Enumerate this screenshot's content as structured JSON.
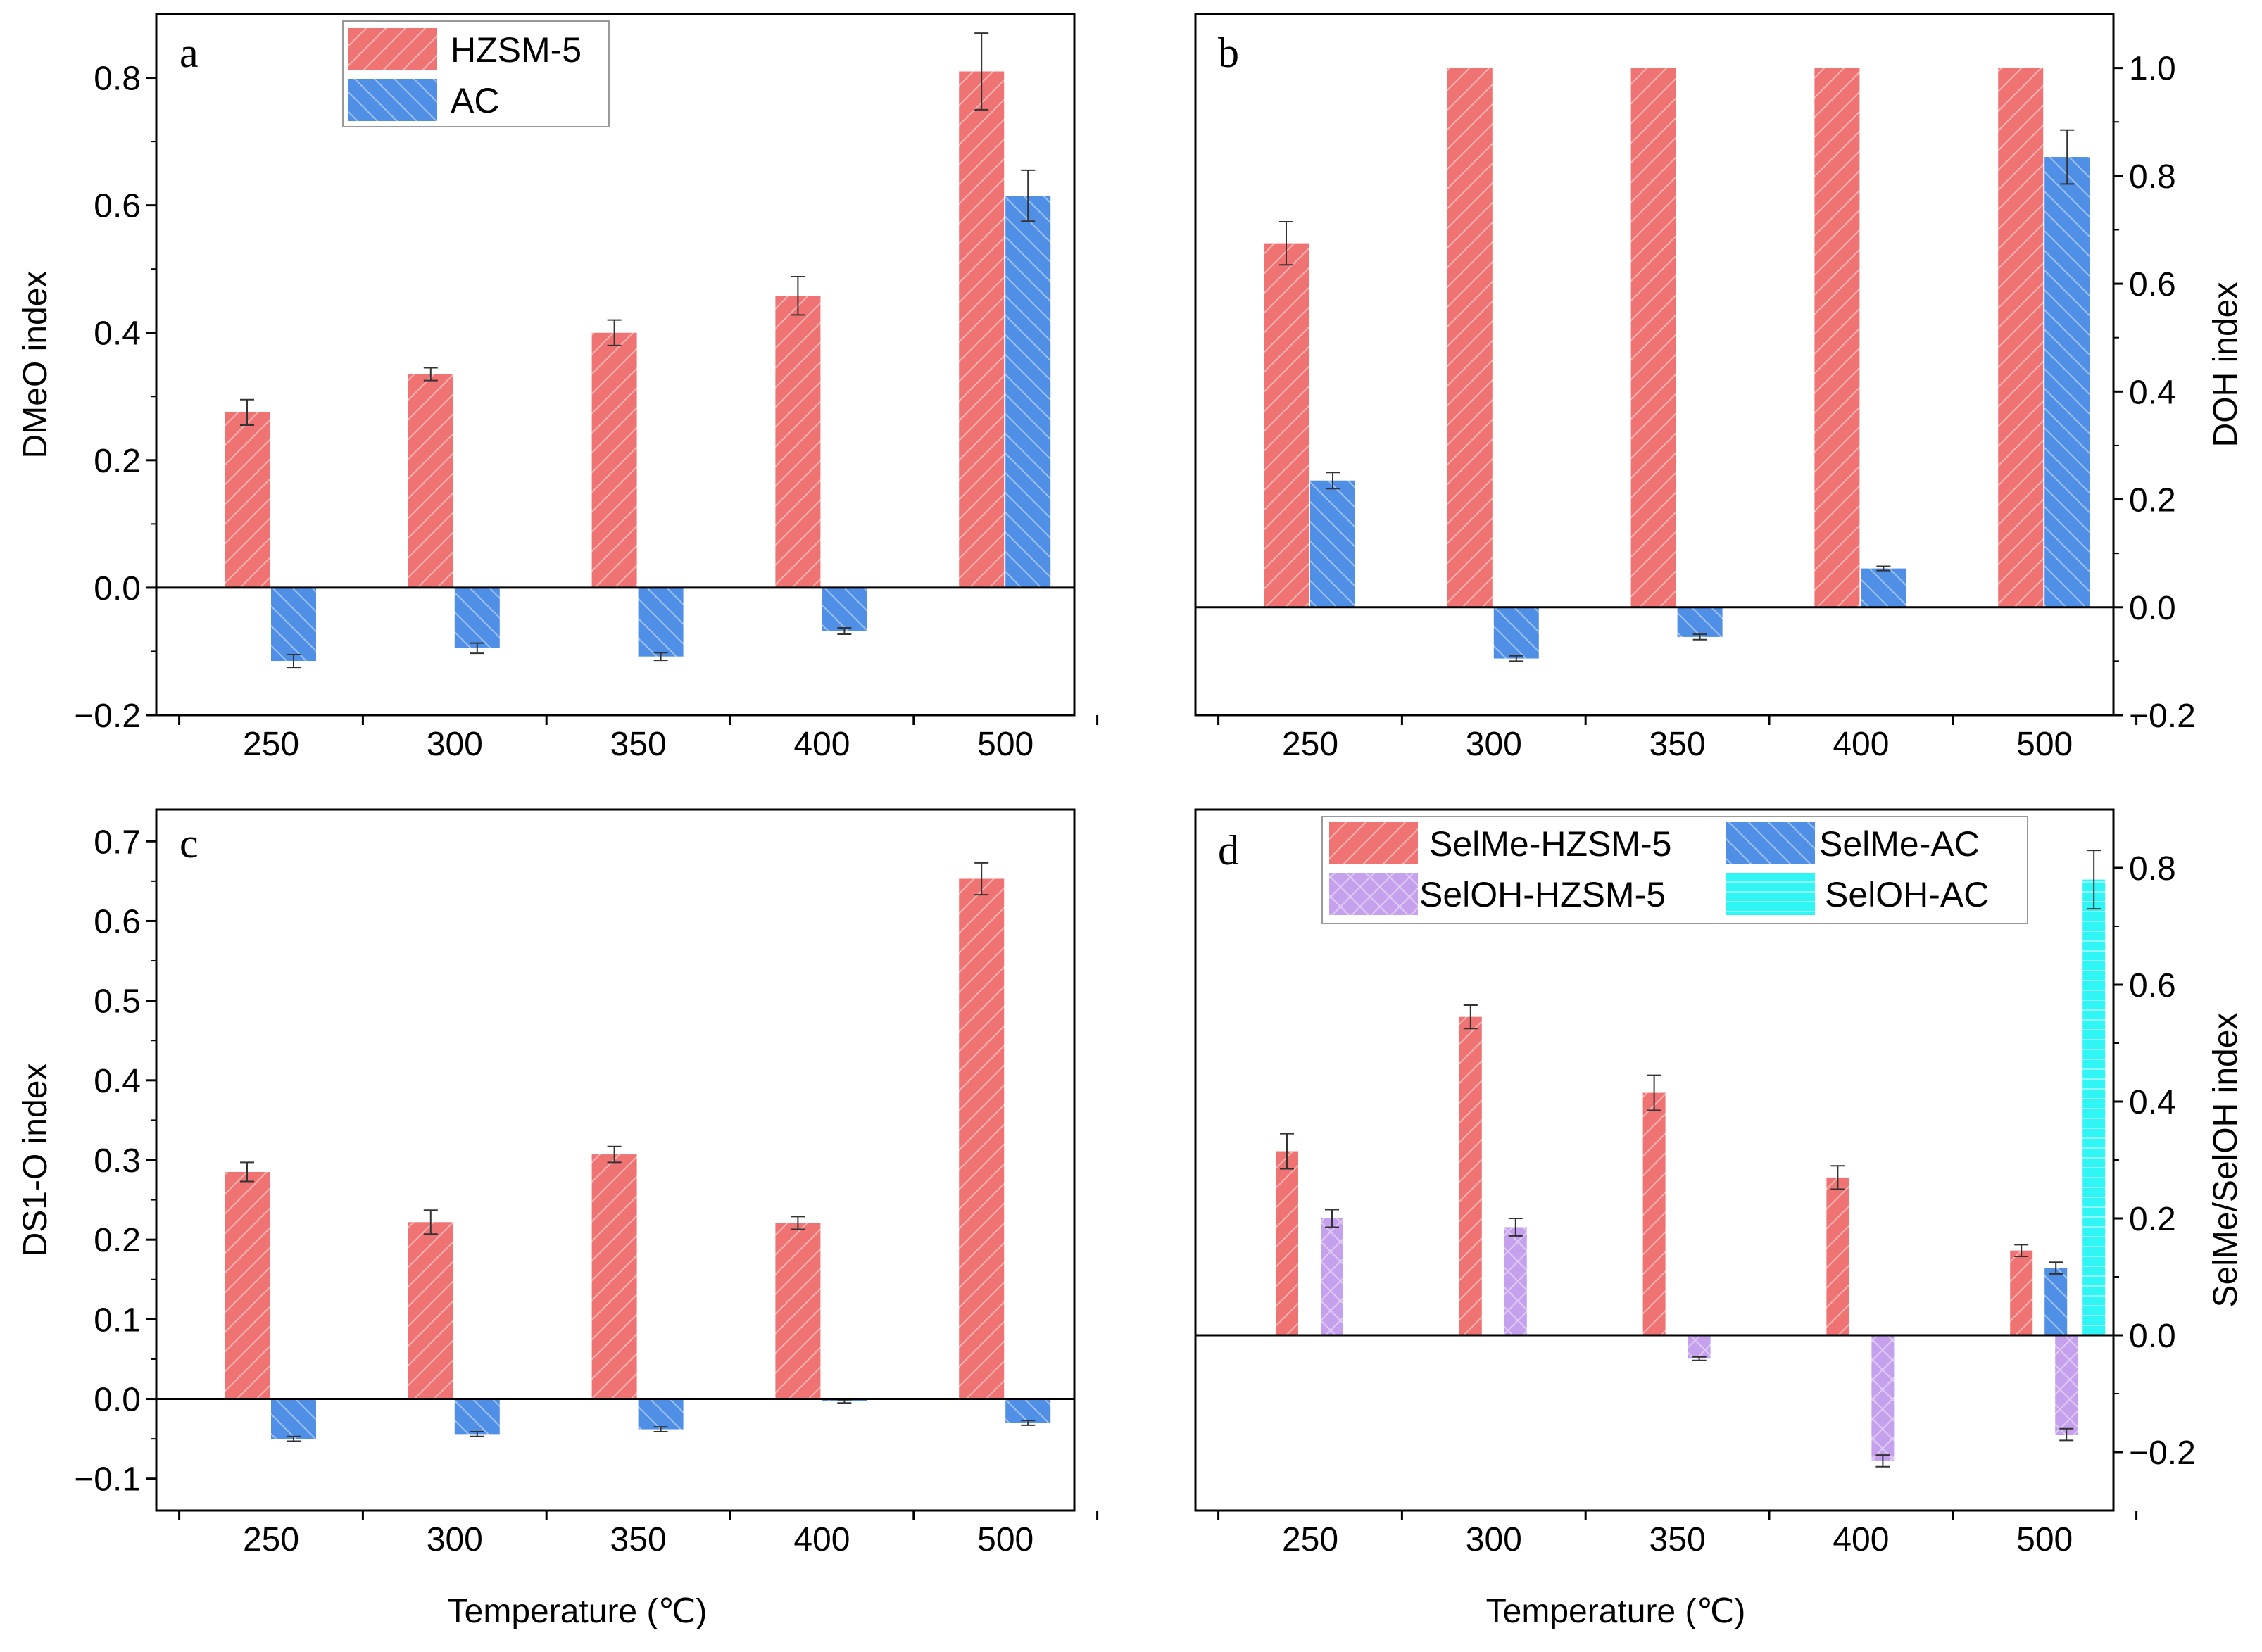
{
  "colors": {
    "hzsm": "#f07373",
    "ac": "#4f8fe6",
    "seloh_hzsm": "#c5a0ec",
    "seloh_ac": "#2ff6f4",
    "errorbar": "#333333",
    "axis": "#000000"
  },
  "xlabel": "Temperature (℃)",
  "categories": [
    "250",
    "300",
    "350",
    "400",
    "500"
  ],
  "chart_data": [
    {
      "type": "bar",
      "panel": "a",
      "ylabel": "DMeO index",
      "y_axis_side": "left",
      "ylim": [
        -0.2,
        0.9
      ],
      "yticks": [
        -0.2,
        0.0,
        0.2,
        0.4,
        0.6,
        0.8
      ],
      "ytick_labels": [
        "−0.2",
        "0.0",
        "0.2",
        "0.4",
        "0.6",
        "0.8"
      ],
      "xlabel": "",
      "categories": [
        "250",
        "300",
        "350",
        "400",
        "500"
      ],
      "legend": "top-left",
      "series": [
        {
          "name": "HZSM-5",
          "color_key": "hzsm",
          "pattern": "hatch-fwd",
          "values": [
            0.275,
            0.335,
            0.4,
            0.458,
            0.81
          ],
          "errors": [
            0.02,
            0.01,
            0.02,
            0.03,
            0.06
          ]
        },
        {
          "name": "AC",
          "color_key": "ac",
          "pattern": "hatch-bwd",
          "values": [
            -0.115,
            -0.095,
            -0.108,
            -0.068,
            0.615
          ],
          "errors": [
            0.01,
            0.008,
            0.006,
            0.005,
            0.04
          ]
        }
      ]
    },
    {
      "type": "bar",
      "panel": "b",
      "ylabel": "DOH index",
      "y_axis_side": "right",
      "ylim": [
        -0.2,
        1.1
      ],
      "yticks": [
        -0.2,
        0.0,
        0.2,
        0.4,
        0.6,
        0.8,
        1.0
      ],
      "ytick_labels": [
        "−0.2",
        "0.0",
        "0.2",
        "0.4",
        "0.6",
        "0.8",
        "1.0"
      ],
      "xlabel": "",
      "categories": [
        "250",
        "300",
        "350",
        "400",
        "500"
      ],
      "legend": "none",
      "series": [
        {
          "name": "",
          "color_key": "hzsm",
          "pattern": "hatch-fwd",
          "values": [
            0.675,
            1.0,
            1.0,
            1.0,
            1.0
          ],
          "errors": [
            0.04,
            0,
            0,
            0,
            0
          ]
        },
        {
          "name": "",
          "color_key": "ac",
          "pattern": "hatch-bwd",
          "values": [
            0.235,
            -0.095,
            -0.055,
            0.072,
            0.835
          ],
          "errors": [
            0.015,
            0.005,
            0.005,
            0.004,
            0.05
          ]
        }
      ]
    },
    {
      "type": "bar",
      "panel": "c",
      "ylabel": "DS1-O index",
      "y_axis_side": "left",
      "ylim": [
        -0.14,
        0.74
      ],
      "yticks": [
        -0.1,
        0.0,
        0.1,
        0.2,
        0.3,
        0.4,
        0.5,
        0.6,
        0.7
      ],
      "ytick_labels": [
        "−0.1",
        "0.0",
        "0.1",
        "0.2",
        "0.3",
        "0.4",
        "0.5",
        "0.6",
        "0.7"
      ],
      "xlabel": "Temperature (℃)",
      "categories": [
        "250",
        "300",
        "350",
        "400",
        "500"
      ],
      "legend": "none",
      "series": [
        {
          "name": "",
          "color_key": "hzsm",
          "pattern": "hatch-fwd",
          "values": [
            0.285,
            0.222,
            0.307,
            0.221,
            0.653
          ],
          "errors": [
            0.012,
            0.015,
            0.01,
            0.008,
            0.02
          ]
        },
        {
          "name": "",
          "color_key": "ac",
          "pattern": "hatch-bwd",
          "values": [
            -0.05,
            -0.044,
            -0.038,
            -0.003,
            -0.03
          ],
          "errors": [
            0.003,
            0.003,
            0.003,
            0.002,
            0.003
          ]
        }
      ]
    },
    {
      "type": "bar",
      "panel": "d",
      "ylabel": "SelMe/SelOH index",
      "y_axis_side": "right",
      "ylim": [
        -0.3,
        0.9
      ],
      "yticks": [
        -0.2,
        0.0,
        0.2,
        0.4,
        0.6,
        0.8
      ],
      "ytick_labels": [
        "−0.2",
        "0.0",
        "0.2",
        "0.4",
        "0.6",
        "0.8"
      ],
      "xlabel": "Temperature (℃)",
      "categories": [
        "250",
        "300",
        "350",
        "400",
        "500"
      ],
      "legend": "top",
      "series": [
        {
          "name": "SelMe-HZSM-5",
          "color_key": "hzsm",
          "pattern": "hatch-fwd",
          "values": [
            0.315,
            0.545,
            0.415,
            0.27,
            0.145
          ],
          "errors": [
            0.03,
            0.02,
            0.03,
            0.02,
            0.01
          ]
        },
        {
          "name": "SelMe-AC",
          "color_key": "ac",
          "pattern": "hatch-bwd",
          "values": [
            null,
            null,
            null,
            null,
            0.115
          ],
          "errors": [
            0,
            0,
            0,
            0,
            0.01
          ]
        },
        {
          "name": "SelOH-HZSM-5",
          "color_key": "seloh_hzsm",
          "pattern": "crosshatch",
          "values": [
            0.2,
            0.185,
            -0.04,
            -0.215,
            -0.17
          ],
          "errors": [
            0.015,
            0.015,
            0.003,
            0.01,
            0.01
          ]
        },
        {
          "name": "SelOH-AC",
          "color_key": "seloh_ac",
          "pattern": "hlines",
          "values": [
            null,
            null,
            null,
            null,
            0.78
          ],
          "errors": [
            0,
            0,
            0,
            0,
            0.05
          ]
        }
      ]
    }
  ]
}
